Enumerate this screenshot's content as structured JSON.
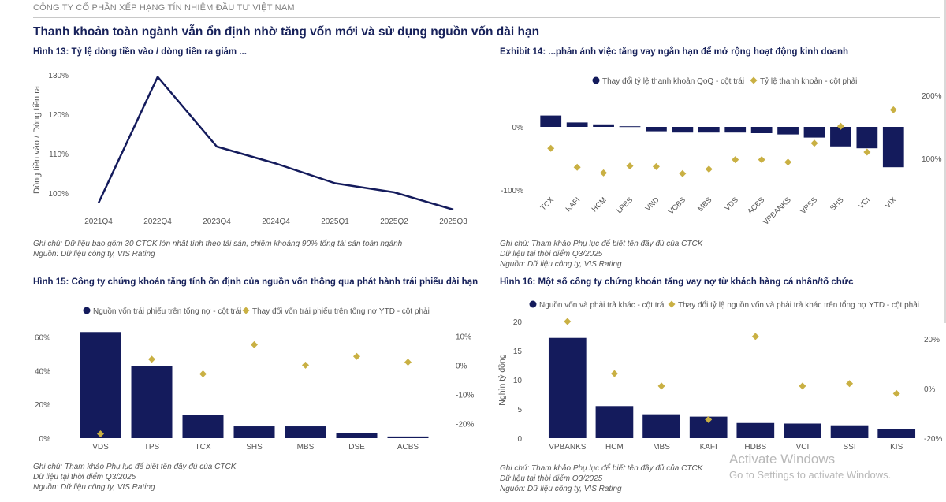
{
  "header": {
    "company": "CÔNG TY CỔ PHẦN XẾP HẠNG TÍN NHIỆM ĐẦU TƯ VIỆT NAM",
    "title": "Thanh khoản toàn ngành vẫn ổn định nhờ tăng vốn mới và sử dụng nguồn vốn dài hạn"
  },
  "colors": {
    "navy": "#141b5c",
    "gold": "#c9b043"
  },
  "chart13": {
    "title": "Hình 13: Tỷ lệ dòng tiền vào / dòng tiền ra giảm ...",
    "note1": "Ghi chú: Dữ liệu bao gồm 30 CTCK lớn nhất tính theo tài sản, chiếm khoảng 90% tổng tài sản toàn ngành",
    "note2": "Nguồn: Dữ liệu công ty, VIS Rating"
  },
  "chart14": {
    "title": "Exhibit 14: ...phản ánh việc tăng vay ngắn hạn để mở rộng hoạt động kinh doanh",
    "note1": "Ghi chú: Tham khảo Phụ lục để biết tên đầy đủ của CTCK",
    "note2": "Dữ liệu tại thời điểm Q3/2025",
    "note3": "Nguồn: Dữ liệu công ty, VIS Rating"
  },
  "chart15": {
    "title": "Hình 15: Công ty chứng khoán tăng tính ổn định của nguồn vốn thông qua phát hành trái phiếu dài hạn",
    "note1": "Ghi chú: Tham khảo Phụ lục để biết tên đầy đủ của CTCK",
    "note2": "Dữ liệu tại thời điểm Q3/2025",
    "note3": "Nguồn: Dữ liệu công ty, VIS Rating"
  },
  "chart16": {
    "title": "Hình 16: Một số công ty chứng khoán tăng vay nợ từ khách hàng cá nhân/tổ chức",
    "note1": "Ghi chú: Tham khảo Phụ lục để biết tên đầy đủ của CTCK",
    "note2": "Dữ liệu tại thời điểm Q3/2025",
    "note3": "Nguồn: Dữ liệu công ty, VIS Rating"
  },
  "watermark": {
    "line1": "Activate Windows",
    "line2": "Go to Settings to activate Windows."
  },
  "chart_data": [
    {
      "id": "c13",
      "type": "line",
      "title": "Hình 13: Tỷ lệ dòng tiền vào / dòng tiền ra giảm ...",
      "xlabel": "",
      "ylabel": "Dòng tiền vào / Dòng tiền ra",
      "categories": [
        "2021Q4",
        "2022Q4",
        "2023Q4",
        "2024Q4",
        "2025Q1",
        "2025Q2",
        "2025Q3"
      ],
      "values": [
        97.5,
        129.5,
        111.8,
        107.5,
        102.5,
        100.2,
        95.8
      ],
      "ylim": [
        96,
        131
      ],
      "yticks": [
        100,
        110,
        120,
        130
      ],
      "ytick_labels": [
        "100%",
        "110%",
        "120%",
        "130%"
      ],
      "grid": false
    },
    {
      "id": "c14",
      "type": "bar",
      "title": "Exhibit 14: ...phản ánh việc tăng vay ngắn hạn để mở rộng hoạt động kinh doanh",
      "categories": [
        "TCX",
        "KAFI",
        "HCM",
        "LPBS",
        "VND",
        "VCBS",
        "MBS",
        "VDS",
        "ACBS",
        "VPBANKS",
        "VPSS",
        "SHS",
        "VCI",
        "VIX"
      ],
      "series": [
        {
          "name": "Thay đổi tỷ lệ thanh khoản QoQ - cột trái",
          "kind": "bar",
          "axis": "left",
          "values": [
            18,
            7,
            4,
            1,
            -7,
            -9,
            -9,
            -9,
            -10,
            -12,
            -17,
            -31,
            -34,
            -64
          ]
        },
        {
          "name": "Tỷ lệ thanh khoản - cột phải",
          "kind": "scatter",
          "axis": "right",
          "values": [
            116,
            86,
            77,
            88,
            87,
            76,
            83,
            98,
            98,
            94,
            124,
            151,
            110,
            177
          ]
        }
      ],
      "left_ylim": [
        -100,
        50
      ],
      "left_yticks": [
        -100,
        0
      ],
      "left_ytick_labels": [
        "-100%",
        "0%"
      ],
      "right_ylim": [
        50,
        200
      ],
      "right_yticks": [
        100,
        200
      ],
      "right_ytick_labels": [
        "100%",
        "200%"
      ],
      "legend": "top"
    },
    {
      "id": "c15",
      "type": "bar",
      "title": "Hình 15: Công ty chứng khoán tăng tính ổn định của nguồn vốn thông qua phát hành trái phiếu dài hạn",
      "categories": [
        "VDS",
        "TPS",
        "TCX",
        "SHS",
        "MBS",
        "DSE",
        "ACBS"
      ],
      "series": [
        {
          "name": "Nguồn vốn trái phiếu trên tổng nợ - cột trái",
          "kind": "bar",
          "axis": "left",
          "values": [
            63,
            43,
            14,
            7,
            7,
            3,
            1
          ]
        },
        {
          "name": "Thay đổi vốn trái phiếu trên tổng nợ YTD - cột phải",
          "kind": "scatter",
          "axis": "right",
          "values": [
            -23.5,
            2,
            -3,
            7,
            0,
            3,
            1
          ]
        }
      ],
      "left_ylim": [
        0,
        65
      ],
      "left_yticks": [
        0,
        20,
        40,
        60
      ],
      "left_ytick_labels": [
        "0%",
        "20%",
        "40%",
        "60%"
      ],
      "right_ylim": [
        -25,
        12.5
      ],
      "right_yticks": [
        10,
        0,
        -10,
        -20
      ],
      "right_ytick_labels": [
        "10%",
        "0%",
        "-10%",
        "-20%"
      ],
      "legend": "top"
    },
    {
      "id": "c16",
      "type": "bar",
      "title": "Hình 16: Một số công ty chứng khoán tăng vay nợ từ khách hàng cá nhân/tổ chức",
      "ylabel": "Nghìn tỷ đồng",
      "categories": [
        "VPBANKS",
        "HCM",
        "MBS",
        "KAFI",
        "HDBS",
        "VCI",
        "SSI",
        "KIS"
      ],
      "series": [
        {
          "name": "Nguồn vốn và phải trả khác - cột trái",
          "kind": "bar",
          "axis": "left",
          "values": [
            17.2,
            5.5,
            4.1,
            3.7,
            2.6,
            2.5,
            2.2,
            1.6
          ]
        },
        {
          "name": "Thay đổi tỷ lệ nguồn vốn và phải trả khác trên tổng nợ YTD - cột phải",
          "kind": "scatter",
          "axis": "right",
          "values": [
            27,
            6,
            1,
            -12.5,
            21,
            1,
            2,
            -2
          ]
        }
      ],
      "left_ylim": [
        0,
        20
      ],
      "left_yticks": [
        0,
        5,
        10,
        15,
        20
      ],
      "left_ytick_labels": [
        "0",
        "5",
        "10",
        "15",
        "20"
      ],
      "right_ylim": [
        -20,
        27
      ],
      "right_yticks": [
        20,
        0,
        -20
      ],
      "right_ytick_labels": [
        "20%",
        "0%",
        "-20%"
      ],
      "legend": "top"
    }
  ]
}
